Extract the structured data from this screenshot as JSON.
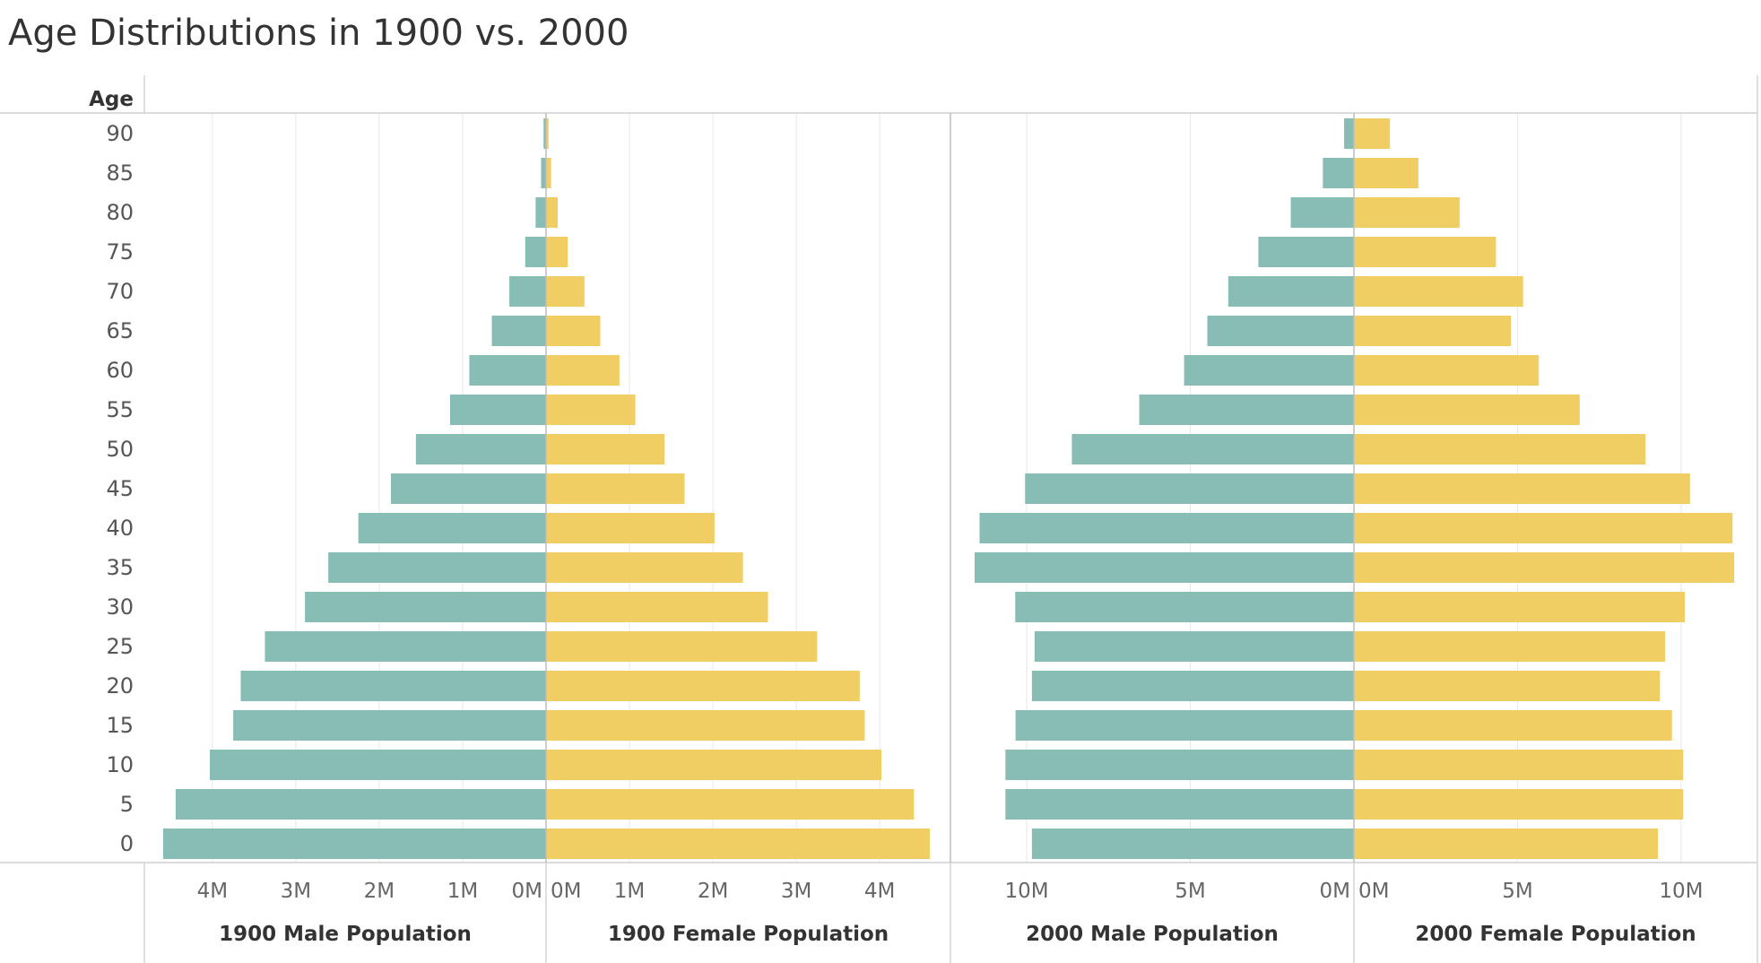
{
  "chart_data": {
    "type": "bar",
    "title": "Age Distributions in 1900 vs. 2000",
    "row_header": "Age",
    "categories": [
      "90",
      "85",
      "80",
      "75",
      "70",
      "65",
      "60",
      "55",
      "50",
      "45",
      "40",
      "35",
      "30",
      "25",
      "20",
      "15",
      "10",
      "5",
      "0"
    ],
    "series": [
      {
        "name": "1900 Male Population",
        "direction": "left",
        "axis_max": 4600000,
        "ticks": [
          "4M",
          "3M",
          "2M",
          "1M",
          "0M"
        ],
        "tick_values": [
          4000000,
          3000000,
          2000000,
          1000000,
          0
        ],
        "color": "#88bdb6",
        "values": [
          30000,
          60000,
          125000,
          250000,
          440000,
          650000,
          920000,
          1150000,
          1560000,
          1860000,
          2250000,
          2610000,
          2890000,
          3370000,
          3660000,
          3750000,
          4030000,
          4440000,
          4590000
        ]
      },
      {
        "name": "1900 Female Population",
        "direction": "right",
        "axis_max": 4600000,
        "ticks": [
          "0M",
          "1M",
          "2M",
          "3M",
          "4M"
        ],
        "tick_values": [
          0,
          1000000,
          2000000,
          3000000,
          4000000
        ],
        "color": "#f0ce63",
        "values": [
          30000,
          60000,
          140000,
          260000,
          460000,
          650000,
          880000,
          1070000,
          1420000,
          1660000,
          2020000,
          2360000,
          2660000,
          3250000,
          3760000,
          3820000,
          4020000,
          4410000,
          4600000
        ]
      },
      {
        "name": "2000 Male Population",
        "direction": "left",
        "axis_max": 11700000,
        "ticks": [
          "10M",
          "5M",
          "0M"
        ],
        "tick_values": [
          10000000,
          5000000,
          0
        ],
        "color": "#88bdb6",
        "values": [
          300000,
          950000,
          1930000,
          2920000,
          3840000,
          4480000,
          5190000,
          6560000,
          8620000,
          10050000,
          11440000,
          11590000,
          10350000,
          9760000,
          9840000,
          10340000,
          10650000,
          10650000,
          9840000
        ]
      },
      {
        "name": "2000 Female Population",
        "direction": "right",
        "axis_max": 11700000,
        "ticks": [
          "0M",
          "5M",
          "10M"
        ],
        "tick_values": [
          0,
          5000000,
          10000000
        ],
        "color": "#f0ce63",
        "values": [
          1100000,
          1970000,
          3230000,
          4340000,
          5170000,
          4800000,
          5650000,
          6900000,
          8910000,
          10270000,
          11570000,
          11620000,
          10110000,
          9510000,
          9350000,
          9720000,
          10060000,
          10060000,
          9290000
        ]
      }
    ],
    "xlabel": "",
    "ylabel": "Age",
    "grid": true
  }
}
